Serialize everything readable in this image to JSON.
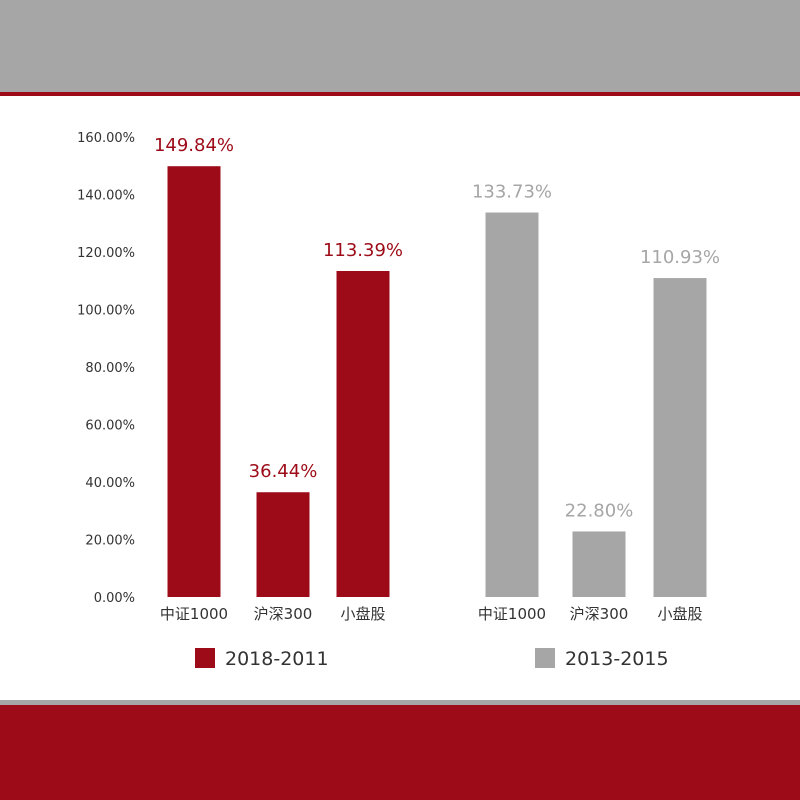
{
  "colors": {
    "top_band": "#a6a6a6",
    "accent_red": "#9c0b17",
    "gray": "#a6a6a6"
  },
  "chart_data": {
    "type": "bar",
    "y_tick_labels": [
      "0.00%",
      "20.00%",
      "40.00%",
      "60.00%",
      "80.00%",
      "100.00%",
      "120.00%",
      "140.00%",
      "160.00%"
    ],
    "ylim": [
      0,
      160
    ],
    "unit": "%",
    "grid": false,
    "legend_placement": "bottom",
    "groups": [
      {
        "name": "2018-2011",
        "color": "#9c0b17",
        "categories": [
          "中证1000",
          "沪深300",
          "小盘股"
        ],
        "values": [
          149.84,
          36.44,
          113.39
        ],
        "value_labels": [
          "149.84%",
          "36.44%",
          "113.39%"
        ]
      },
      {
        "name": "2013-2015",
        "color": "#a6a6a6",
        "categories": [
          "中证1000",
          "沪深300",
          "小盘股"
        ],
        "values": [
          133.73,
          22.8,
          110.93
        ],
        "value_labels": [
          "133.73%",
          "22.80%",
          "110.93%"
        ]
      }
    ]
  }
}
